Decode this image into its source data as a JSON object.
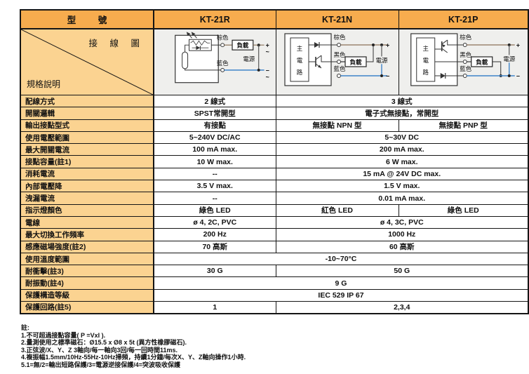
{
  "table": {
    "corner": {
      "model_label": "型 號",
      "wiring_label": "接 線 圖",
      "spec_label": "規格說明"
    },
    "columns": [
      "KT-21R",
      "KT-21N",
      "KT-21P"
    ],
    "diagram_labels": {
      "brown": "棕色",
      "black": "黑色",
      "blue": "藍色",
      "load": "負載",
      "power": "電源",
      "main_circuit_chars": [
        "主",
        "電",
        "路"
      ],
      "plus": "+",
      "minus": "−",
      "tilde": "~"
    },
    "rows": [
      {
        "label": "配線方式",
        "cells": [
          {
            "text": "2 線式",
            "span": 1
          },
          {
            "text": "3 線式",
            "span": 2
          }
        ]
      },
      {
        "label": "開關邏輯",
        "cells": [
          {
            "text": "SPST常開型",
            "span": 1
          },
          {
            "text": "電子式無接點，常開型",
            "span": 2
          }
        ]
      },
      {
        "label": "輸出接點型式",
        "cells": [
          {
            "text": "有接點",
            "span": 1
          },
          {
            "text": "無接點 NPN 型",
            "span": 1
          },
          {
            "text": "無接點 PNP 型",
            "span": 1
          }
        ]
      },
      {
        "label": "使用電壓範圍",
        "cells": [
          {
            "text": "5~240V DC/AC",
            "span": 1
          },
          {
            "text": "5~30V DC",
            "span": 2
          }
        ]
      },
      {
        "label": "最大開關電流",
        "cells": [
          {
            "text": "100 mA max.",
            "span": 1
          },
          {
            "text": "200 mA max.",
            "span": 2
          }
        ]
      },
      {
        "label": "接點容量(註1)",
        "cells": [
          {
            "text": "10 W max.",
            "span": 1
          },
          {
            "text": "6 W max.",
            "span": 2
          }
        ]
      },
      {
        "label": "消耗電流",
        "cells": [
          {
            "text": "--",
            "span": 1
          },
          {
            "text": "15 mA @ 24V DC max.",
            "span": 2
          }
        ]
      },
      {
        "label": "內部電壓降",
        "cells": [
          {
            "text": "3.5 V max.",
            "span": 1
          },
          {
            "text": "1.5 V max.",
            "span": 2
          }
        ]
      },
      {
        "label": "洩漏電流",
        "cells": [
          {
            "text": "--",
            "span": 1
          },
          {
            "text": "0.01 mA max.",
            "span": 2
          }
        ]
      },
      {
        "label": "指示燈顏色",
        "cells": [
          {
            "text": "綠色 LED",
            "span": 1
          },
          {
            "text": "紅色 LED",
            "span": 1
          },
          {
            "text": "綠色 LED",
            "span": 1
          }
        ]
      },
      {
        "label": "電線",
        "cells": [
          {
            "text": "ø 4, 2C, PVC",
            "span": 1
          },
          {
            "text": "ø 4, 3C, PVC",
            "span": 2
          }
        ]
      },
      {
        "label": "最大切換工作頻率",
        "cells": [
          {
            "text": "200 Hz",
            "span": 1
          },
          {
            "text": "1000 Hz",
            "span": 2
          }
        ]
      },
      {
        "label": "感應磁場強度(註2)",
        "cells": [
          {
            "text": "70 高斯",
            "span": 1
          },
          {
            "text": "60 高斯",
            "span": 2
          }
        ]
      },
      {
        "label": "使用溫度範圍",
        "cells": [
          {
            "text": "-10~70°C",
            "span": 3
          }
        ]
      },
      {
        "label": "耐衝擊(註3)",
        "cells": [
          {
            "text": "30 G",
            "span": 1
          },
          {
            "text": "50 G",
            "span": 2
          }
        ]
      },
      {
        "label": "耐振動(註4)",
        "cells": [
          {
            "text": "9 G",
            "span": 3
          }
        ]
      },
      {
        "label": "保護構造等級",
        "cells": [
          {
            "text": "IEC 529 IP 67",
            "span": 3
          }
        ]
      },
      {
        "label": "保護回路(註5)",
        "cells": [
          {
            "text": "1",
            "span": 1
          },
          {
            "text": "2,3,4",
            "span": 2
          }
        ]
      }
    ]
  },
  "notes": {
    "title": "註:",
    "items": [
      "1.不可超過接點容量( P =VxI ).",
      "2.量測使用之標準磁石：Ø15.5 x Ø8 x 5t (異方性橡膠磁石).",
      "3.正弦波/X、Y、Z 3軸向/每一軸向3回/每一回時間11ms.",
      "4.複振幅1.5mm/10Hz-55Hz-10Hz掃頻，持續1分鐘/每次X、Y、Z軸向操作1小時.",
      "5.1=無/2=輸出短路保護/3=電源逆接保護/4=突波吸收保護"
    ]
  },
  "colors": {
    "header_orange": "#F7AC4E",
    "label_orange": "#FBD391",
    "diagram_bg": "#EFEFED",
    "border": "#151515",
    "wire_blue": "#3F84C9",
    "wire_brown": "#8A7258"
  }
}
